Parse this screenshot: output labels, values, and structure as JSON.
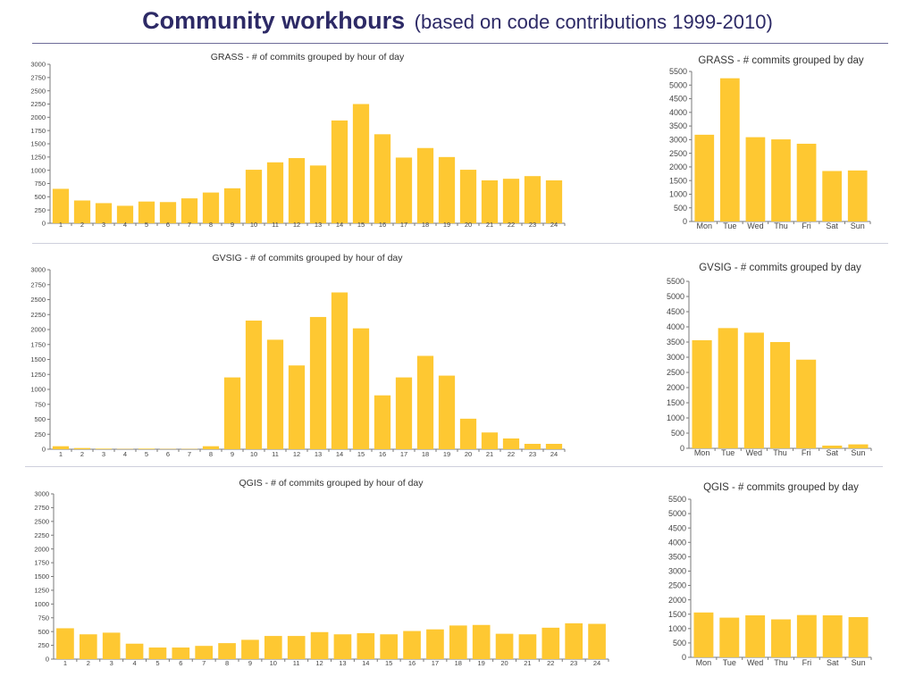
{
  "title": {
    "main": "Community workhours",
    "sub": "(based on code contributions 1999-2010)"
  },
  "colors": {
    "bar": "#fec832",
    "axis": "#7a7a7a",
    "title": "#2d2a66"
  },
  "chart_data": [
    {
      "id": "grass-hour",
      "type": "bar",
      "title": "GRASS - # of commits grouped by hour of day",
      "categories": [
        "1",
        "2",
        "3",
        "4",
        "5",
        "6",
        "7",
        "8",
        "9",
        "10",
        "11",
        "12",
        "13",
        "14",
        "15",
        "16",
        "17",
        "18",
        "19",
        "20",
        "21",
        "22",
        "23",
        "24"
      ],
      "values": [
        650,
        430,
        380,
        330,
        410,
        400,
        470,
        580,
        660,
        1010,
        1150,
        1230,
        1090,
        1940,
        2250,
        1680,
        1240,
        1420,
        1250,
        1010,
        810,
        840,
        890,
        810
      ],
      "ylim": [
        0,
        3000
      ],
      "yticks": [
        0,
        250,
        500,
        750,
        1000,
        1250,
        1500,
        1750,
        2000,
        2250,
        2500,
        2750,
        3000
      ]
    },
    {
      "id": "grass-day",
      "type": "bar",
      "title": "GRASS - # commits grouped by day",
      "categories": [
        "Mon",
        "Tue",
        "Wed",
        "Thu",
        "Fri",
        "Sat",
        "Sun"
      ],
      "values": [
        3180,
        5250,
        3090,
        3010,
        2850,
        1850,
        1870
      ],
      "ylim": [
        0,
        5500
      ],
      "yticks": [
        0,
        500,
        1000,
        1500,
        2000,
        2500,
        3000,
        3500,
        4000,
        4500,
        5000,
        5500
      ]
    },
    {
      "id": "gvsig-hour",
      "type": "bar",
      "title": "GVSIG - # of commits grouped by hour of day",
      "categories": [
        "1",
        "2",
        "3",
        "4",
        "5",
        "6",
        "7",
        "8",
        "9",
        "10",
        "11",
        "12",
        "13",
        "14",
        "15",
        "16",
        "17",
        "18",
        "19",
        "20",
        "21",
        "22",
        "23",
        "24"
      ],
      "values": [
        50,
        20,
        10,
        5,
        10,
        5,
        5,
        50,
        1200,
        2150,
        1830,
        1400,
        2210,
        2620,
        2020,
        900,
        1200,
        1560,
        1230,
        510,
        280,
        180,
        90,
        90
      ],
      "ylim": [
        0,
        3000
      ],
      "yticks": [
        0,
        250,
        500,
        750,
        1000,
        1250,
        1500,
        1750,
        2000,
        2250,
        2500,
        2750,
        3000
      ]
    },
    {
      "id": "gvsig-day",
      "type": "bar",
      "title": "GVSIG - # commits grouped by day",
      "categories": [
        "Mon",
        "Tue",
        "Wed",
        "Thu",
        "Fri",
        "Sat",
        "Sun"
      ],
      "values": [
        3560,
        3960,
        3810,
        3500,
        2920,
        90,
        130
      ],
      "ylim": [
        0,
        5500
      ],
      "yticks": [
        0,
        500,
        1000,
        1500,
        2000,
        2500,
        3000,
        3500,
        4000,
        4500,
        5000,
        5500
      ]
    },
    {
      "id": "qgis-hour",
      "type": "bar",
      "title": "QGIS - # of commits grouped by hour of day",
      "categories": [
        "1",
        "2",
        "3",
        "4",
        "5",
        "6",
        "7",
        "8",
        "9",
        "10",
        "11",
        "12",
        "13",
        "14",
        "15",
        "16",
        "17",
        "18",
        "19",
        "20",
        "21",
        "22",
        "23",
        "24"
      ],
      "values": [
        560,
        450,
        480,
        280,
        210,
        210,
        240,
        290,
        350,
        420,
        420,
        490,
        450,
        470,
        450,
        510,
        540,
        610,
        620,
        460,
        450,
        570,
        650,
        640
      ],
      "ylim": [
        0,
        3000
      ],
      "yticks": [
        0,
        250,
        500,
        750,
        1000,
        1250,
        1500,
        1750,
        2000,
        2250,
        2500,
        2750,
        3000
      ]
    },
    {
      "id": "qgis-day",
      "type": "bar",
      "title": "QGIS - # commits grouped by day",
      "categories": [
        "Mon",
        "Tue",
        "Wed",
        "Thu",
        "Fri",
        "Sat",
        "Sun"
      ],
      "values": [
        1560,
        1380,
        1460,
        1320,
        1470,
        1460,
        1400
      ],
      "ylim": [
        0,
        5500
      ],
      "yticks": [
        0,
        500,
        1000,
        1500,
        2000,
        2500,
        3000,
        3500,
        4000,
        4500,
        5000,
        5500
      ]
    }
  ]
}
